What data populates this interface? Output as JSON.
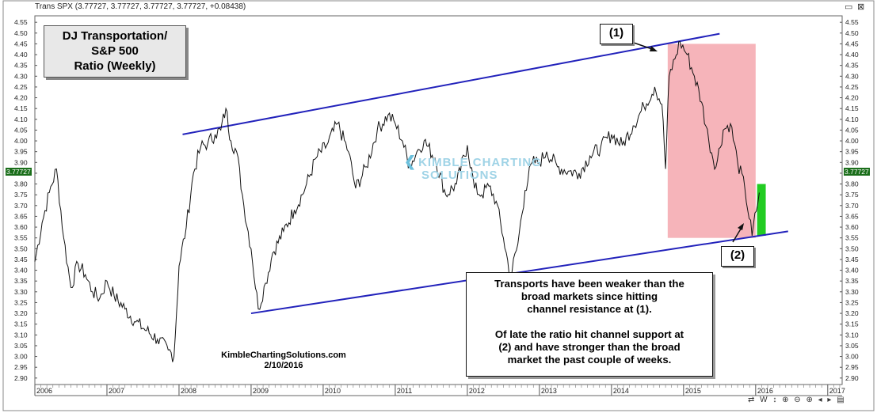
{
  "header": {
    "title": "Trans SPX (3.77727, 3.77727, 3.77727, 3.77727, +0.08438)",
    "min_icon": "minimize-icon",
    "close_icon": "close-icon"
  },
  "title_box": {
    "line1": "DJ Transportation/",
    "line2": "S&P 500",
    "line3": "Ratio (Weekly)"
  },
  "label1": "(1)",
  "label2": "(2)",
  "note": {
    "line1": "Transports have been weaker than the",
    "line2": "broad markets since hitting",
    "line3": "channel resistance at (1).",
    "line4": "Of late the ratio hit channel support at",
    "line5": "(2) and have stronger than the broad",
    "line6": "market the past couple of weeks."
  },
  "credit": {
    "site": "KimbleChartingSolutions.com",
    "date": "2/10/2016"
  },
  "watermark": {
    "line1": "KIMBLE CHARTING",
    "line2": "SOLUTIONS"
  },
  "last_value_label": "3.77727",
  "statusbar": "⇄ W ↕ ⊕ ⊖ ⊕ ◂ ▸ ▤",
  "colors": {
    "price_line": "#111111",
    "channel": "#2222bb",
    "decline_zone": "#f4a7ae",
    "rebound_zone": "#22cc22",
    "last_tag": "#1a6e1a"
  },
  "chart_data": {
    "type": "line",
    "title": "DJ Transportation/ S&P 500 Ratio (Weekly)",
    "xlim": [
      2006.0,
      2017.2
    ],
    "ylim": [
      2.87,
      4.58
    ],
    "y_ticks": [
      2.9,
      2.95,
      3.0,
      3.05,
      3.1,
      3.15,
      3.2,
      3.25,
      3.3,
      3.35,
      3.4,
      3.45,
      3.5,
      3.55,
      3.6,
      3.65,
      3.7,
      3.75,
      3.8,
      3.85,
      3.9,
      3.95,
      4.0,
      4.05,
      4.1,
      4.15,
      4.2,
      4.25,
      4.3,
      4.35,
      4.4,
      4.45,
      4.5,
      4.55
    ],
    "x_tick_labels": [
      "2006",
      "2007",
      "2008",
      "2009",
      "2010",
      "2011",
      "2012",
      "2013",
      "2014",
      "2015",
      "2016",
      "2017"
    ],
    "x_tick_values": [
      2006,
      2007,
      2008,
      2009,
      2010,
      2011,
      2012,
      2013,
      2014,
      2015,
      2016,
      2017
    ],
    "series": [
      {
        "x": [
          2006.0,
          2006.1,
          2006.2,
          2006.3,
          2006.4,
          2006.5,
          2006.6,
          2006.7,
          2006.8,
          2006.9,
          2007.0,
          2007.1,
          2007.25,
          2007.4,
          2007.55,
          2007.7,
          2007.85,
          2007.93,
          2008.0,
          2008.1,
          2008.2,
          2008.3,
          2008.4,
          2008.5,
          2008.58,
          2008.65,
          2008.72,
          2008.8,
          2008.9,
          2009.0,
          2009.1,
          2009.2,
          2009.3,
          2009.45,
          2009.6,
          2009.75,
          2009.9,
          2010.05,
          2010.2,
          2010.35,
          2010.45,
          2010.6,
          2010.75,
          2010.9,
          2011.0,
          2011.1,
          2011.2,
          2011.3,
          2011.4,
          2011.55,
          2011.7,
          2011.85,
          2012.0,
          2012.1,
          2012.2,
          2012.3,
          2012.4,
          2012.5,
          2012.6,
          2012.7,
          2012.8,
          2012.9,
          2013.0,
          2013.1,
          2013.25,
          2013.4,
          2013.55,
          2013.7,
          2013.85,
          2014.0,
          2014.15,
          2014.3,
          2014.45,
          2014.6,
          2014.7,
          2014.75,
          2014.8,
          2014.88,
          2014.95,
          2015.05,
          2015.15,
          2015.25,
          2015.35,
          2015.45,
          2015.55,
          2015.65,
          2015.75,
          2015.85,
          2015.95,
          2016.05
        ],
        "y": [
          3.44,
          3.62,
          3.76,
          3.87,
          3.55,
          3.32,
          3.43,
          3.38,
          3.3,
          3.27,
          3.35,
          3.28,
          3.22,
          3.16,
          3.12,
          3.08,
          3.03,
          3.0,
          3.42,
          3.6,
          3.85,
          3.97,
          3.99,
          4.03,
          4.05,
          4.15,
          4.0,
          3.95,
          3.7,
          3.5,
          3.22,
          3.34,
          3.48,
          3.58,
          3.68,
          3.78,
          3.92,
          3.98,
          4.08,
          3.95,
          3.78,
          3.88,
          4.05,
          4.12,
          4.08,
          4.0,
          3.88,
          3.95,
          4.0,
          3.92,
          3.75,
          3.8,
          3.98,
          3.78,
          3.75,
          3.79,
          3.72,
          3.55,
          3.37,
          3.52,
          3.77,
          3.9,
          3.9,
          3.95,
          3.88,
          3.86,
          3.85,
          3.93,
          3.97,
          4.03,
          3.98,
          4.07,
          4.16,
          4.25,
          4.17,
          3.87,
          4.3,
          4.38,
          4.46,
          4.4,
          4.3,
          4.18,
          4.0,
          3.88,
          4.05,
          4.08,
          3.9,
          3.78,
          3.56,
          3.76
        ]
      }
    ],
    "channel_resistance": {
      "x": [
        2008.05,
        2014.75
      ],
      "y": [
        4.03,
        4.45
      ]
    },
    "channel_support": {
      "x": [
        2009.0,
        2016.05
      ],
      "y": [
        3.2,
        3.56
      ]
    },
    "decline_zone": {
      "x": [
        2014.78,
        2016.0
      ],
      "y": [
        3.55,
        4.45
      ]
    },
    "rebound_zone": {
      "x": [
        2016.02,
        2016.14
      ],
      "y": [
        3.56,
        3.8
      ]
    }
  }
}
